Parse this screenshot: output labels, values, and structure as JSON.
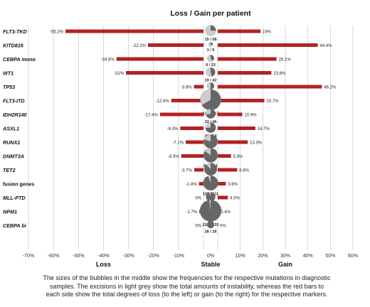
{
  "chart_data": {
    "type": "bar",
    "title": "Loss / Gain per patient",
    "xlabel_left": "Loss",
    "xlabel_center": "Stable",
    "xlabel_right": "Gain",
    "xlim": [
      -70,
      60
    ],
    "xticks": [
      "-70%",
      "-60%",
      "-50%",
      "-40%",
      "-30%",
      "-20%",
      "-10%",
      "0%",
      "10%",
      "20%",
      "30%",
      "40%",
      "50%",
      "60%"
    ],
    "grid": true,
    "bar_color": "#b22222",
    "categories": [
      "FLT3-TKD",
      "KITD816",
      "CEBPA mono",
      "WT1",
      "TP53",
      "FLT3-ITD",
      "IDH2R140",
      "ASXL1",
      "RUNX1",
      "DNMT3A",
      "TET2",
      "fusion genes",
      "MLL-PTD",
      "NPM1",
      "CEBPA bi"
    ],
    "series": [
      {
        "name": "Loss",
        "values": [
          -55.2,
          -22.2,
          -34.8,
          -31,
          -3.8,
          -12.9,
          -17.4,
          -9.3,
          -7.1,
          -8.9,
          -3.7,
          -1.8,
          0,
          -1.7,
          0
        ],
        "labels": [
          "-55.2%",
          "-22.2%",
          "-34.8%",
          "-31%",
          "-3.8%",
          "-12.9%",
          "-17.4%",
          "-9.3%",
          "-7.1%",
          "-8.9%",
          "-3.7%",
          "-1.8%",
          "0%",
          "-1.7%",
          "0%"
        ]
      },
      {
        "name": "Gain",
        "values": [
          19,
          44.4,
          26.1,
          23.8,
          46.2,
          20.7,
          10.9,
          16.7,
          13.3,
          5.9,
          8.6,
          3.6,
          4.5,
          0.4,
          0
        ],
        "labels": [
          "19%",
          "44.4%",
          "26.1%",
          "23.8%",
          "46.2%",
          "20.7%",
          "10.9%",
          "16.7%",
          "13.3%",
          "5.9%",
          "8.6%",
          "3.6%",
          "4.5%",
          "0.4%",
          "0%"
        ]
      }
    ],
    "bubbles": {
      "stable": [
        15,
        3,
        9,
        19,
        13,
        144,
        33,
        40,
        78,
        86,
        71,
        105,
        42,
        228,
        28
      ],
      "total": [
        58,
        9,
        23,
        42,
        26,
        217,
        46,
        54,
        98,
        101,
        81,
        111,
        44,
        233,
        28
      ],
      "labels": [
        "15 / 58",
        "3 / 9",
        "9 / 23",
        "19 / 42",
        "13 / 26",
        "144 / 217",
        "33 / 46",
        "40 / 54",
        "78 / 98",
        "86 / 101",
        "71 / 81",
        "105 / 111",
        "42 / 44",
        "228 / 233",
        "28 / 28"
      ],
      "color_stable": "#666666",
      "color_total": "#cccccc"
    }
  },
  "caption": "The sizes of the bubbles in the middle show the frequencies for the respective mutations in diagnostic samples. The excisions in light grey show the total amounts of instability, whereas the red bars to each side show the total degrees of loss (to the left) or gain (to the right) for the respective markers."
}
